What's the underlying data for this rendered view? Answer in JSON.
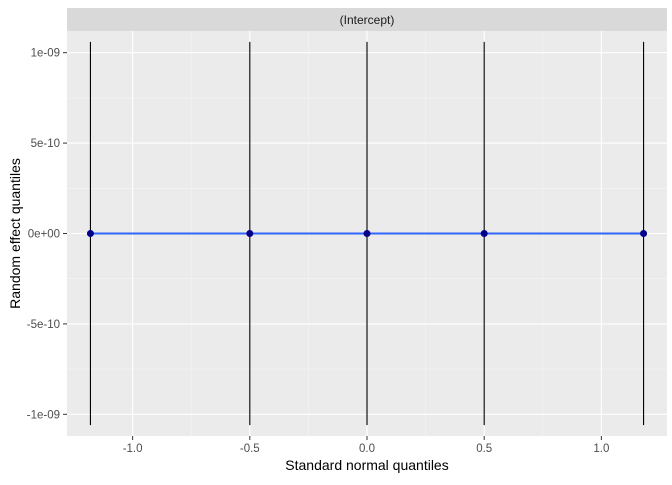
{
  "chart_data": {
    "type": "scatter",
    "facet_label": "(Intercept)",
    "xlabel": "Standard normal quantiles",
    "ylabel": "Random effect quantiles",
    "xlim": [
      -1.28,
      1.28
    ],
    "ylim": [
      -1.12e-09,
      1.12e-09
    ],
    "x_ticks": [
      {
        "value": -1.0,
        "label": "-1.0"
      },
      {
        "value": -0.5,
        "label": "-0.5"
      },
      {
        "value": 0.0,
        "label": "0.0"
      },
      {
        "value": 0.5,
        "label": "0.5"
      },
      {
        "value": 1.0,
        "label": "1.0"
      }
    ],
    "y_ticks": [
      {
        "value": 1e-09,
        "label": "1e-09"
      },
      {
        "value": 5e-10,
        "label": "5e-10"
      },
      {
        "value": 0,
        "label": "0e+00"
      },
      {
        "value": -5e-10,
        "label": "-5e-10"
      },
      {
        "value": -1e-09,
        "label": "-1e-09"
      }
    ],
    "points": [
      {
        "x": -1.18,
        "y": 0,
        "ymin": -1.06e-09,
        "ymax": 1.06e-09
      },
      {
        "x": -0.5,
        "y": 0,
        "ymin": -1.06e-09,
        "ymax": 1.06e-09
      },
      {
        "x": 0.0,
        "y": 0,
        "ymin": -1.06e-09,
        "ymax": 1.06e-09
      },
      {
        "x": 0.5,
        "y": 0,
        "ymin": -1.06e-09,
        "ymax": 1.06e-09
      },
      {
        "x": 1.18,
        "y": 0,
        "ymin": -1.06e-09,
        "ymax": 1.06e-09
      }
    ],
    "reference_line": {
      "slope": 0,
      "intercept": 0
    },
    "grid": true,
    "colors": {
      "panel_bg": "#ebebeb",
      "strip_bg": "#d9d9d9",
      "grid_major": "#ffffff",
      "grid_minor": "#f5f5f5",
      "point": "#00008b",
      "errorbar": "#000000",
      "line": "#3366ff",
      "axis_text": "#4d4d4d",
      "title_text": "#000000"
    }
  }
}
